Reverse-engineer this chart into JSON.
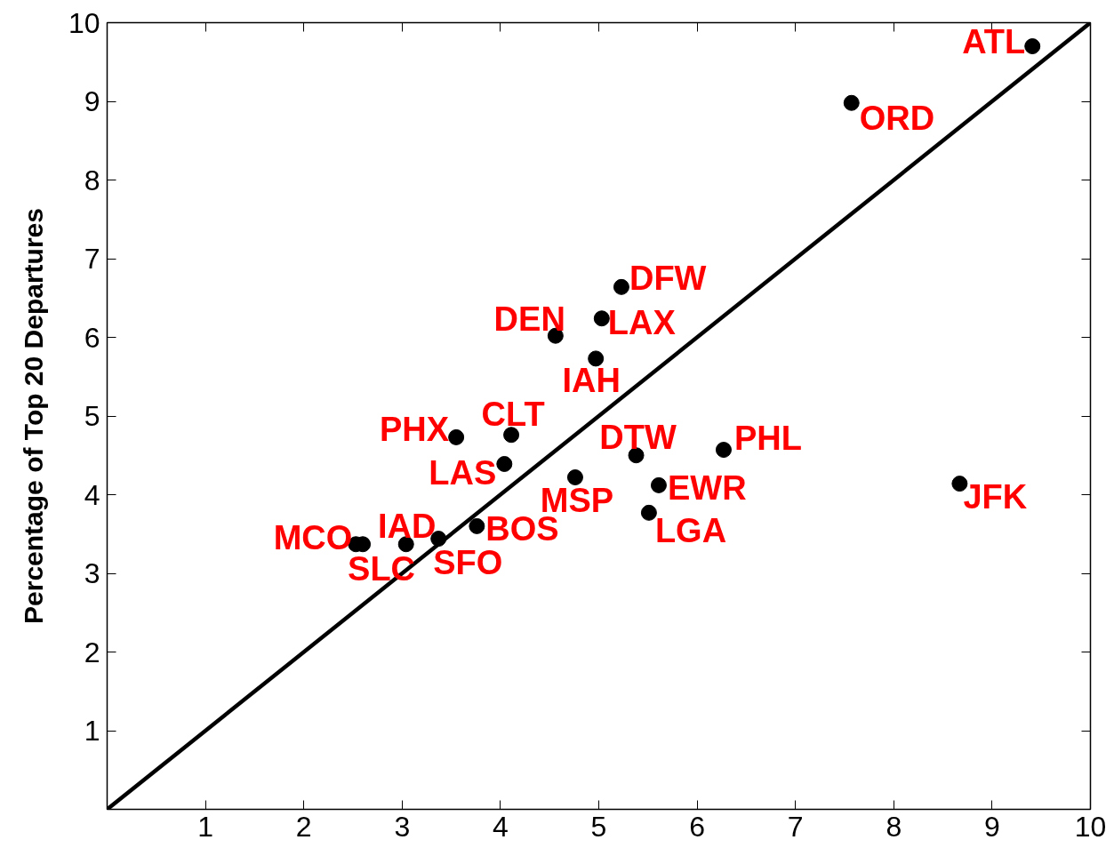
{
  "chart_data": {
    "type": "scatter",
    "ylabel": "Percentage of Top 20 Departures",
    "xlim": [
      0,
      10
    ],
    "ylim": [
      0,
      10
    ],
    "xticks": [
      1,
      2,
      3,
      4,
      5,
      6,
      7,
      8,
      9,
      10
    ],
    "yticks": [
      1,
      2,
      3,
      4,
      5,
      6,
      7,
      8,
      9,
      10
    ],
    "grid": false,
    "series": [
      {
        "marker": "circle",
        "color": "#000000",
        "x": [
          9.41,
          7.57,
          5.23,
          5.03,
          4.56,
          4.97,
          3.55,
          4.11,
          4.04,
          5.38,
          6.27,
          4.76,
          5.61,
          5.51,
          8.67,
          3.76,
          3.37,
          3.04,
          2.53,
          2.6
        ],
        "values": [
          9.7,
          8.98,
          6.64,
          6.24,
          6.02,
          5.73,
          4.73,
          4.76,
          4.39,
          4.5,
          4.57,
          4.22,
          4.12,
          3.77,
          4.14,
          3.6,
          3.44,
          3.37,
          3.37,
          3.37
        ]
      },
      {
        "type": "line",
        "marker": "none",
        "color": "#000000",
        "line_style": "solid",
        "x": [
          0,
          10
        ],
        "values": [
          0,
          10
        ]
      }
    ],
    "annotations": [
      {
        "text": "ATL",
        "x": 9.41,
        "y": 9.7
      },
      {
        "text": "ORD",
        "x": 7.57,
        "y": 8.98
      },
      {
        "text": "DFW",
        "x": 5.23,
        "y": 6.64
      },
      {
        "text": "LAX",
        "x": 5.03,
        "y": 6.24
      },
      {
        "text": "DEN",
        "x": 4.56,
        "y": 6.02
      },
      {
        "text": "IAH",
        "x": 4.97,
        "y": 5.73
      },
      {
        "text": "PHX",
        "x": 3.55,
        "y": 4.73
      },
      {
        "text": "CLT",
        "x": 4.11,
        "y": 4.76
      },
      {
        "text": "LAS",
        "x": 4.04,
        "y": 4.39
      },
      {
        "text": "DTW",
        "x": 5.38,
        "y": 4.5
      },
      {
        "text": "PHL",
        "x": 6.27,
        "y": 4.57
      },
      {
        "text": "MSP",
        "x": 4.76,
        "y": 4.22
      },
      {
        "text": "EWR",
        "x": 5.61,
        "y": 4.12
      },
      {
        "text": "LGA",
        "x": 5.51,
        "y": 3.77
      },
      {
        "text": "JFK",
        "x": 8.67,
        "y": 4.14
      },
      {
        "text": "BOS",
        "x": 3.76,
        "y": 3.6
      },
      {
        "text": "SFO",
        "x": 3.37,
        "y": 3.44
      },
      {
        "text": "IAD",
        "x": 3.04,
        "y": 3.37
      },
      {
        "text": "MCO",
        "x": 2.53,
        "y": 3.37
      },
      {
        "text": "SLC",
        "x": 2.6,
        "y": 3.37
      }
    ]
  }
}
